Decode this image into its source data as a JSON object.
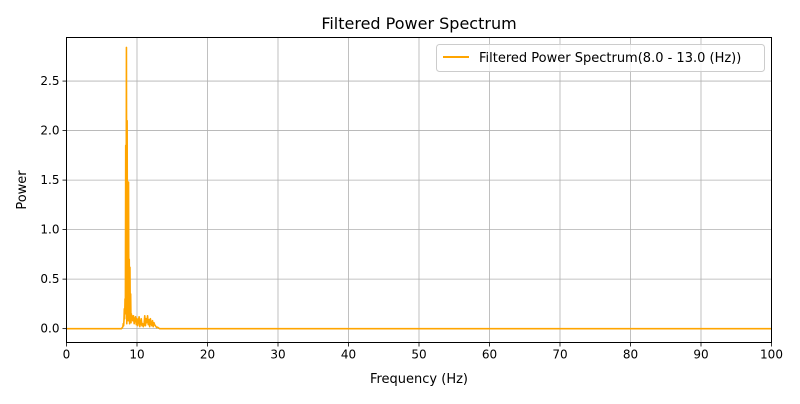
{
  "chart_data": {
    "type": "line",
    "title": "Filtered Power Spectrum",
    "xlabel": "Frequency (Hz)",
    "ylabel": "Power",
    "xlim": [
      0,
      100
    ],
    "ylim": [
      -0.14,
      2.94
    ],
    "grid": true,
    "legend_position": "top-right",
    "x_ticks": [
      0,
      10,
      20,
      30,
      40,
      50,
      60,
      70,
      80,
      90,
      100
    ],
    "x_tick_labels": [
      "0",
      "10",
      "20",
      "30",
      "40",
      "50",
      "60",
      "70",
      "80",
      "90",
      "100"
    ],
    "y_ticks": [
      0.0,
      0.5,
      1.0,
      1.5,
      2.0,
      2.5
    ],
    "y_tick_labels": [
      "0.0",
      "0.5",
      "1.0",
      "1.5",
      "2.0",
      "2.5"
    ],
    "series": [
      {
        "name": "Filtered Power Spectrum(8.0 - 13.0 (Hz))",
        "color": "#ffa500",
        "x": [
          0,
          7.8,
          7.9,
          8.0,
          8.05,
          8.1,
          8.15,
          8.2,
          8.25,
          8.3,
          8.35,
          8.4,
          8.45,
          8.5,
          8.55,
          8.6,
          8.65,
          8.7,
          8.75,
          8.8,
          8.85,
          8.9,
          8.95,
          9.0,
          9.05,
          9.1,
          9.15,
          9.2,
          9.25,
          9.3,
          9.4,
          9.5,
          9.6,
          9.7,
          9.8,
          9.9,
          10.0,
          10.1,
          10.2,
          10.3,
          10.4,
          10.5,
          10.6,
          10.7,
          10.8,
          10.9,
          11.0,
          11.1,
          11.2,
          11.3,
          11.4,
          11.5,
          11.6,
          11.7,
          11.8,
          11.9,
          12.0,
          12.1,
          12.2,
          12.3,
          12.4,
          12.5,
          12.6,
          12.7,
          12.8,
          12.9,
          13.0,
          13.1,
          13.2,
          100
        ],
        "y": [
          0.0,
          0.0,
          0.01,
          0.02,
          0.05,
          0.03,
          0.08,
          0.2,
          0.1,
          0.3,
          0.15,
          1.85,
          0.25,
          2.84,
          0.05,
          2.1,
          0.4,
          1.2,
          0.08,
          1.48,
          0.1,
          0.7,
          0.05,
          0.62,
          0.12,
          0.35,
          0.06,
          0.15,
          0.1,
          0.13,
          0.08,
          0.13,
          0.05,
          0.1,
          0.12,
          0.04,
          0.1,
          0.03,
          0.08,
          0.12,
          0.02,
          0.06,
          0.1,
          0.03,
          0.05,
          0.02,
          0.04,
          0.13,
          0.03,
          0.1,
          0.06,
          0.13,
          0.04,
          0.09,
          0.02,
          0.1,
          0.05,
          0.03,
          0.08,
          0.02,
          0.06,
          0.04,
          0.03,
          0.02,
          0.01,
          0.015,
          0.01,
          0.005,
          0.0,
          0.0
        ]
      }
    ]
  }
}
